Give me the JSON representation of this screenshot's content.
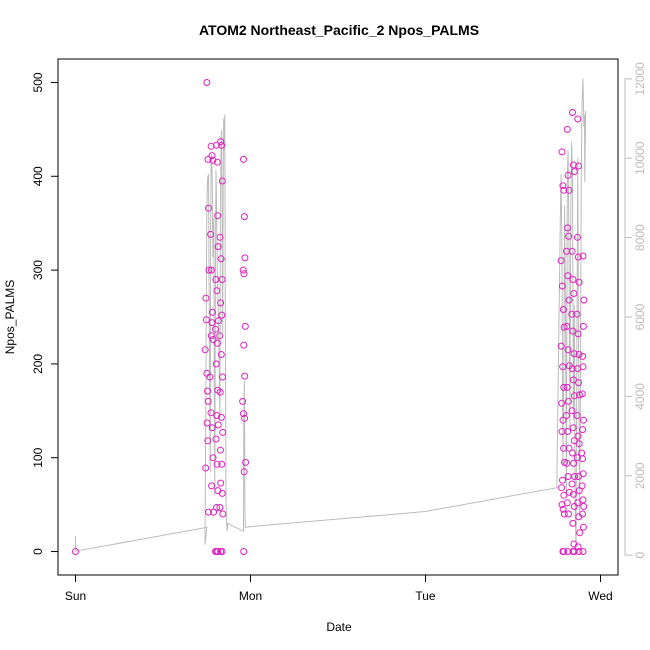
{
  "chart_data": {
    "type": "scatter",
    "title": "ATOM2 Northeast_Pacific_2 Npos_PALMS",
    "xlabel": "Date",
    "ylabel": "Npos_PALMS",
    "x_axis": {
      "type": "time",
      "ticks": [
        {
          "label": "Sun",
          "value": 0
        },
        {
          "label": "Mon",
          "value": 1
        },
        {
          "label": "Tue",
          "value": 2
        },
        {
          "label": "Wed",
          "value": 3
        }
      ],
      "range": [
        -0.1,
        3.1
      ]
    },
    "y_axis_left": {
      "range": [
        -25,
        525
      ],
      "ticks": [
        0,
        100,
        200,
        300,
        400,
        500
      ]
    },
    "y_axis_right": {
      "range": [
        -500,
        12500
      ],
      "ticks": [
        0,
        2000,
        4000,
        6000,
        8000,
        10000,
        12000
      ]
    },
    "colors": {
      "points": "#e020c0",
      "line": "#bbbbbb",
      "axis": "#000000",
      "right_axis": "#bbbbbb"
    },
    "series": [
      {
        "axis": "left",
        "style": "points",
        "points": [
          [
            0.0,
            0
          ],
          [
            0.75,
            500
          ],
          [
            0.757,
            418
          ],
          [
            0.76,
            366
          ],
          [
            0.763,
            300
          ],
          [
            0.745,
            270
          ],
          [
            0.748,
            247
          ],
          [
            0.741,
            215
          ],
          [
            0.75,
            190
          ],
          [
            0.755,
            171
          ],
          [
            0.758,
            160
          ],
          [
            0.752,
            137
          ],
          [
            0.756,
            118
          ],
          [
            0.744,
            89
          ],
          [
            0.76,
            42
          ],
          [
            0.775,
            432
          ],
          [
            0.78,
            422
          ],
          [
            0.785,
            417
          ],
          [
            0.772,
            338
          ],
          [
            0.777,
            300
          ],
          [
            0.783,
            255
          ],
          [
            0.78,
            244
          ],
          [
            0.776,
            230
          ],
          [
            0.787,
            226
          ],
          [
            0.768,
            186
          ],
          [
            0.774,
            148
          ],
          [
            0.782,
            132
          ],
          [
            0.786,
            100
          ],
          [
            0.778,
            70
          ],
          [
            0.789,
            42
          ],
          [
            0.805,
            433
          ],
          [
            0.81,
            415
          ],
          [
            0.812,
            358
          ],
          [
            0.815,
            325
          ],
          [
            0.802,
            290
          ],
          [
            0.808,
            278
          ],
          [
            0.817,
            246
          ],
          [
            0.8,
            237
          ],
          [
            0.811,
            222
          ],
          [
            0.804,
            200
          ],
          [
            0.813,
            172
          ],
          [
            0.807,
            145
          ],
          [
            0.816,
            135
          ],
          [
            0.803,
            120
          ],
          [
            0.809,
            93
          ],
          [
            0.814,
            65
          ],
          [
            0.806,
            47
          ],
          [
            0.8,
            0
          ],
          [
            0.807,
            0
          ],
          [
            0.813,
            0
          ],
          [
            0.83,
            437
          ],
          [
            0.835,
            433
          ],
          [
            0.839,
            395
          ],
          [
            0.826,
            335
          ],
          [
            0.832,
            312
          ],
          [
            0.838,
            290
          ],
          [
            0.829,
            265
          ],
          [
            0.836,
            252
          ],
          [
            0.824,
            230
          ],
          [
            0.833,
            210
          ],
          [
            0.84,
            186
          ],
          [
            0.827,
            170
          ],
          [
            0.834,
            143
          ],
          [
            0.841,
            127
          ],
          [
            0.828,
            108
          ],
          [
            0.836,
            93
          ],
          [
            0.83,
            73
          ],
          [
            0.839,
            62
          ],
          [
            0.825,
            47
          ],
          [
            0.842,
            40
          ],
          [
            0.829,
            0
          ],
          [
            0.838,
            0
          ],
          [
            0.96,
            418
          ],
          [
            0.965,
            357
          ],
          [
            0.968,
            313
          ],
          [
            0.958,
            300
          ],
          [
            0.963,
            296
          ],
          [
            0.97,
            240
          ],
          [
            0.962,
            220
          ],
          [
            0.967,
            187
          ],
          [
            0.955,
            160
          ],
          [
            0.96,
            147
          ],
          [
            0.966,
            142
          ],
          [
            0.972,
            95
          ],
          [
            0.964,
            85
          ],
          [
            0.961,
            0
          ],
          [
            2.78,
            426
          ],
          [
            2.785,
            390
          ],
          [
            2.79,
            385
          ],
          [
            2.775,
            310
          ],
          [
            2.782,
            283
          ],
          [
            2.788,
            258
          ],
          [
            2.792,
            239
          ],
          [
            2.776,
            219
          ],
          [
            2.784,
            197
          ],
          [
            2.79,
            175
          ],
          [
            2.778,
            158
          ],
          [
            2.786,
            140
          ],
          [
            2.78,
            128
          ],
          [
            2.789,
            110
          ],
          [
            2.794,
            95
          ],
          [
            2.783,
            76
          ],
          [
            2.777,
            68
          ],
          [
            2.791,
            60
          ],
          [
            2.78,
            50
          ],
          [
            2.787,
            45
          ],
          [
            2.793,
            40
          ],
          [
            2.785,
            0
          ],
          [
            2.79,
            0
          ],
          [
            2.81,
            450
          ],
          [
            2.815,
            401
          ],
          [
            2.82,
            385
          ],
          [
            2.812,
            345
          ],
          [
            2.818,
            336
          ],
          [
            2.806,
            320
          ],
          [
            2.813,
            294
          ],
          [
            2.82,
            268
          ],
          [
            2.808,
            240
          ],
          [
            2.815,
            215
          ],
          [
            2.822,
            198
          ],
          [
            2.81,
            175
          ],
          [
            2.817,
            160
          ],
          [
            2.805,
            145
          ],
          [
            2.812,
            128
          ],
          [
            2.82,
            110
          ],
          [
            2.808,
            94
          ],
          [
            2.815,
            80
          ],
          [
            2.822,
            63
          ],
          [
            2.81,
            52
          ],
          [
            2.817,
            40
          ],
          [
            2.813,
            0
          ],
          [
            2.84,
            468
          ],
          [
            2.845,
            412
          ],
          [
            2.85,
            405
          ],
          [
            2.838,
            320
          ],
          [
            2.843,
            290
          ],
          [
            2.848,
            275
          ],
          [
            2.836,
            253
          ],
          [
            2.842,
            235
          ],
          [
            2.849,
            211
          ],
          [
            2.839,
            195
          ],
          [
            2.845,
            183
          ],
          [
            2.851,
            166
          ],
          [
            2.837,
            150
          ],
          [
            2.844,
            132
          ],
          [
            2.85,
            118
          ],
          [
            2.84,
            105
          ],
          [
            2.846,
            94
          ],
          [
            2.852,
            80
          ],
          [
            2.838,
            72
          ],
          [
            2.845,
            61
          ],
          [
            2.85,
            48
          ],
          [
            2.842,
            30
          ],
          [
            2.848,
            8
          ],
          [
            2.842,
            0
          ],
          [
            2.85,
            0
          ],
          [
            2.87,
            461
          ],
          [
            2.875,
            411
          ],
          [
            2.868,
            335
          ],
          [
            2.873,
            314
          ],
          [
            2.878,
            287
          ],
          [
            2.866,
            253
          ],
          [
            2.872,
            232
          ],
          [
            2.877,
            210
          ],
          [
            2.869,
            195
          ],
          [
            2.874,
            180
          ],
          [
            2.88,
            167
          ],
          [
            2.867,
            145
          ],
          [
            2.872,
            123
          ],
          [
            2.878,
            115
          ],
          [
            2.868,
            100
          ],
          [
            2.874,
            80
          ],
          [
            2.879,
            65
          ],
          [
            2.87,
            52
          ],
          [
            2.876,
            37
          ],
          [
            2.881,
            20
          ],
          [
            2.872,
            5
          ],
          [
            2.877,
            0
          ],
          [
            2.9,
            315
          ],
          [
            2.905,
            268
          ],
          [
            2.902,
            240
          ],
          [
            2.898,
            208
          ],
          [
            2.9,
            197
          ],
          [
            2.896,
            168
          ],
          [
            2.903,
            140
          ],
          [
            2.898,
            130
          ],
          [
            2.892,
            105
          ],
          [
            2.897,
            99
          ],
          [
            2.901,
            83
          ],
          [
            2.895,
            70
          ],
          [
            2.9,
            55
          ],
          [
            2.904,
            48
          ],
          [
            2.897,
            40
          ],
          [
            2.902,
            26
          ],
          [
            2.9,
            0
          ]
        ]
      },
      {
        "axis": "right",
        "style": "line",
        "points": [
          [
            0.0,
            480
          ],
          [
            0.0,
            100
          ],
          [
            0.75,
            700
          ],
          [
            0.74,
            260
          ],
          [
            0.745,
            4200
          ],
          [
            0.75,
            8600
          ],
          [
            0.755,
            9500
          ],
          [
            0.76,
            9600
          ],
          [
            0.765,
            5400
          ],
          [
            0.77,
            2100
          ],
          [
            0.772,
            8200
          ],
          [
            0.775,
            9900
          ],
          [
            0.778,
            10100
          ],
          [
            0.782,
            9300
          ],
          [
            0.785,
            7500
          ],
          [
            0.79,
            8500
          ],
          [
            0.793,
            4500
          ],
          [
            0.796,
            1500
          ],
          [
            0.8,
            7800
          ],
          [
            0.803,
            9700
          ],
          [
            0.806,
            8800
          ],
          [
            0.81,
            7200
          ],
          [
            0.815,
            6300
          ],
          [
            0.82,
            5000
          ],
          [
            0.825,
            3400
          ],
          [
            0.828,
            8900
          ],
          [
            0.832,
            10500
          ],
          [
            0.835,
            10700
          ],
          [
            0.838,
            8600
          ],
          [
            0.841,
            5600
          ],
          [
            0.844,
            9200
          ],
          [
            0.847,
            11000
          ],
          [
            0.85,
            10200
          ],
          [
            0.853,
            11100
          ],
          [
            0.856,
            6300
          ],
          [
            0.86,
            1300
          ],
          [
            0.865,
            600
          ],
          [
            0.87,
            800
          ],
          [
            0.96,
            600
          ],
          [
            0.962,
            3200
          ],
          [
            0.965,
            4400
          ],
          [
            0.968,
            1200
          ],
          [
            0.97,
            700
          ],
          [
            1.0,
            720
          ],
          [
            2.0,
            1100
          ],
          [
            2.75,
            1700
          ],
          [
            2.76,
            5000
          ],
          [
            2.77,
            8400
          ],
          [
            2.775,
            9600
          ],
          [
            2.78,
            7500
          ],
          [
            2.785,
            2300
          ],
          [
            2.79,
            4500
          ],
          [
            2.795,
            8800
          ],
          [
            2.8,
            6000
          ],
          [
            2.805,
            1600
          ],
          [
            2.81,
            9500
          ],
          [
            2.815,
            10200
          ],
          [
            2.82,
            7600
          ],
          [
            2.825,
            3200
          ],
          [
            2.83,
            8700
          ],
          [
            2.835,
            10400
          ],
          [
            2.84,
            9700
          ],
          [
            2.845,
            3400
          ],
          [
            2.85,
            6300
          ],
          [
            2.855,
            1200
          ],
          [
            2.86,
            200
          ],
          [
            2.865,
            5200
          ],
          [
            2.87,
            10000
          ],
          [
            2.875,
            4800
          ],
          [
            2.88,
            1100
          ],
          [
            2.885,
            4200
          ],
          [
            2.89,
            9800
          ],
          [
            2.895,
            11400
          ],
          [
            2.9,
            12000
          ],
          [
            2.905,
            10800
          ],
          [
            2.908,
            11100
          ],
          [
            2.91,
            9400
          ],
          [
            2.915,
            11200
          ]
        ]
      }
    ]
  }
}
